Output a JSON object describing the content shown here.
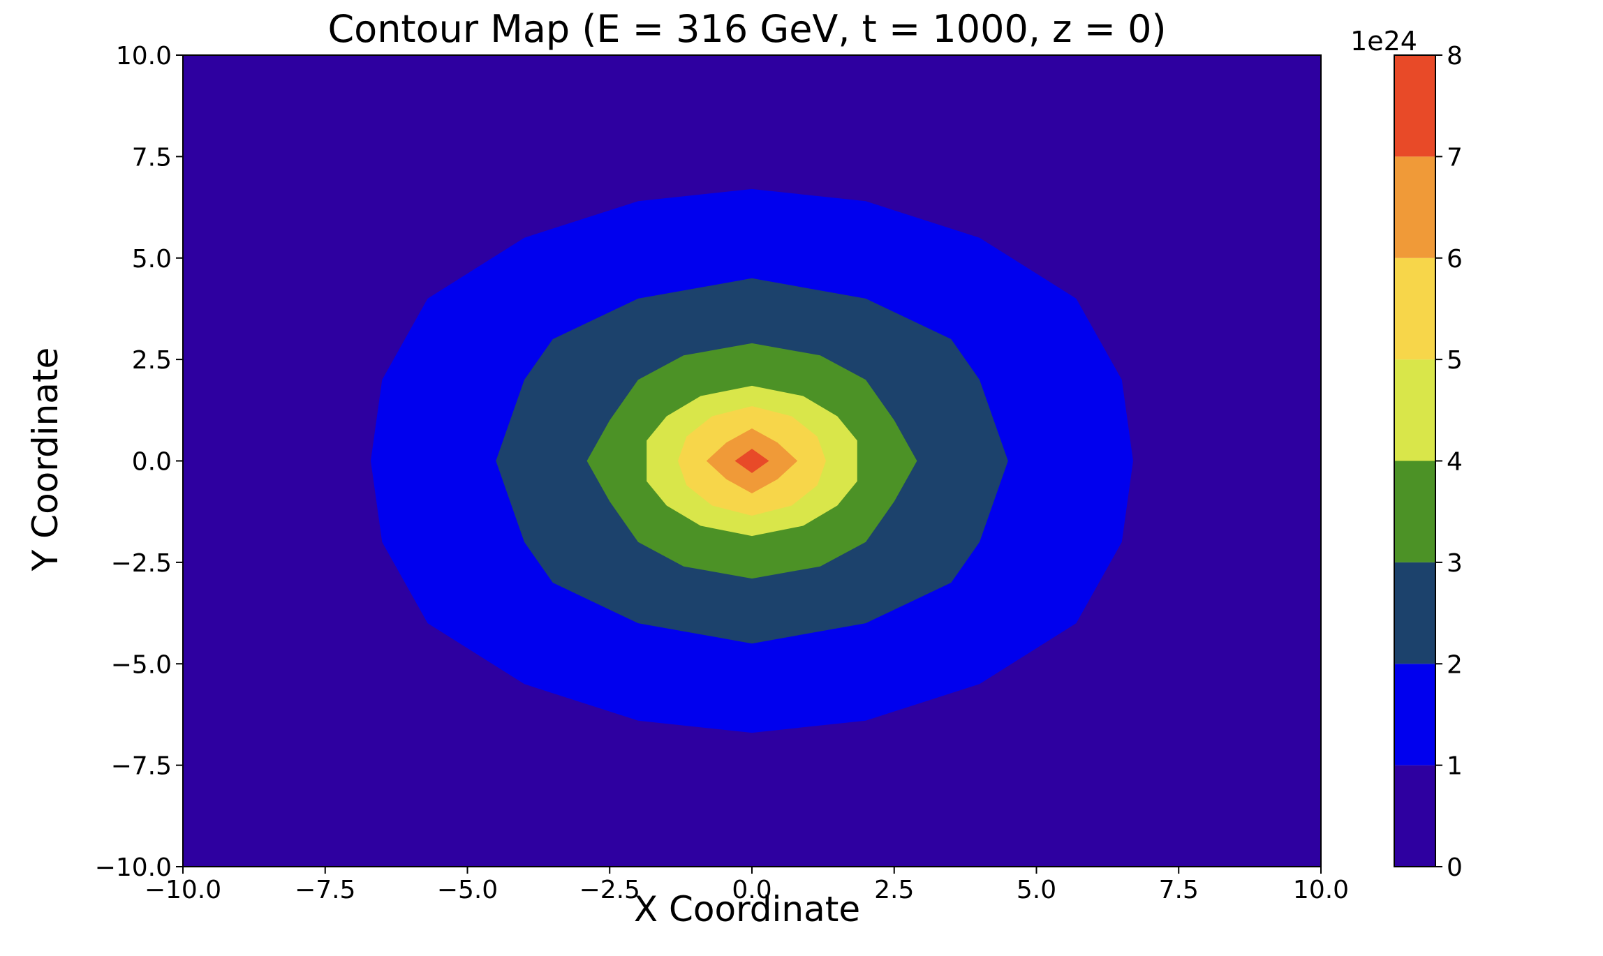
{
  "chart_data": {
    "type": "contour",
    "title": "Contour Map (E = 316 GeV, t = 1000, z = 0)",
    "xlabel": "X Coordinate",
    "ylabel": "Y Coordinate",
    "xlim": [
      -10,
      10
    ],
    "ylim": [
      -10,
      10
    ],
    "x_ticks": [
      "−10.0",
      "−7.5",
      "−5.0",
      "−2.5",
      "0.0",
      "2.5",
      "5.0",
      "7.5",
      "10.0"
    ],
    "y_ticks": [
      "−10.0",
      "−7.5",
      "−5.0",
      "−2.5",
      "0.0",
      "2.5",
      "5.0",
      "7.5",
      "10.0"
    ],
    "grid": false,
    "levels": [
      0,
      1,
      2,
      3,
      4,
      5,
      6,
      7,
      8
    ],
    "level_colors": [
      "#2e00a0",
      "#0000ee",
      "#1c426c",
      "#4c9226",
      "#d9e64a",
      "#f7d64a",
      "#f09a38",
      "#e84a28"
    ],
    "colorbar": {
      "scale_label": "1e24",
      "tick_labels": [
        "0",
        "1",
        "2",
        "3",
        "4",
        "5",
        "6",
        "7",
        "8"
      ]
    },
    "contours": [
      {
        "level": 1,
        "points": [
          [
            0,
            6.7
          ],
          [
            2,
            6.4
          ],
          [
            4,
            5.5
          ],
          [
            5.7,
            4
          ],
          [
            6.5,
            2
          ],
          [
            6.7,
            0
          ],
          [
            6.5,
            -2
          ],
          [
            5.7,
            -4
          ],
          [
            4,
            -5.5
          ],
          [
            2,
            -6.4
          ],
          [
            0,
            -6.7
          ],
          [
            -2,
            -6.4
          ],
          [
            -4,
            -5.5
          ],
          [
            -5.7,
            -4
          ],
          [
            -6.5,
            -2
          ],
          [
            -6.7,
            0
          ],
          [
            -6.5,
            2
          ],
          [
            -5.7,
            4
          ],
          [
            -4,
            5.5
          ],
          [
            -2,
            6.4
          ]
        ]
      },
      {
        "level": 2,
        "points": [
          [
            0,
            4.5
          ],
          [
            2,
            4
          ],
          [
            3.5,
            3
          ],
          [
            4,
            2
          ],
          [
            4.5,
            0
          ],
          [
            4,
            -2
          ],
          [
            3.5,
            -3
          ],
          [
            2,
            -4
          ],
          [
            0,
            -4.5
          ],
          [
            -2,
            -4
          ],
          [
            -3.5,
            -3
          ],
          [
            -4,
            -2
          ],
          [
            -4.5,
            0
          ],
          [
            -4,
            2
          ],
          [
            -3.5,
            3
          ],
          [
            -2,
            4
          ]
        ]
      },
      {
        "level": 3,
        "points": [
          [
            0,
            2.9
          ],
          [
            1.2,
            2.6
          ],
          [
            2,
            2
          ],
          [
            2.5,
            1
          ],
          [
            2.9,
            0
          ],
          [
            2.5,
            -1
          ],
          [
            2,
            -2
          ],
          [
            1.2,
            -2.6
          ],
          [
            0,
            -2.9
          ],
          [
            -1.2,
            -2.6
          ],
          [
            -2,
            -2
          ],
          [
            -2.5,
            -1
          ],
          [
            -2.9,
            0
          ],
          [
            -2.5,
            1
          ],
          [
            -2,
            2
          ],
          [
            -1.2,
            2.6
          ]
        ]
      },
      {
        "level": 4,
        "points": [
          [
            0,
            1.85
          ],
          [
            0.9,
            1.6
          ],
          [
            1.5,
            1.1
          ],
          [
            1.85,
            0.5
          ],
          [
            1.85,
            0
          ],
          [
            1.85,
            -0.5
          ],
          [
            1.5,
            -1.1
          ],
          [
            0.9,
            -1.6
          ],
          [
            0,
            -1.85
          ],
          [
            -0.9,
            -1.6
          ],
          [
            -1.5,
            -1.1
          ],
          [
            -1.85,
            -0.5
          ],
          [
            -1.85,
            0
          ],
          [
            -1.85,
            0.5
          ],
          [
            -1.5,
            1.1
          ],
          [
            -0.9,
            1.6
          ]
        ]
      },
      {
        "level": 5,
        "points": [
          [
            0,
            1.35
          ],
          [
            0.7,
            1.1
          ],
          [
            1.15,
            0.6
          ],
          [
            1.3,
            0
          ],
          [
            1.15,
            -0.6
          ],
          [
            0.7,
            -1.1
          ],
          [
            0,
            -1.35
          ],
          [
            -0.7,
            -1.1
          ],
          [
            -1.15,
            -0.6
          ],
          [
            -1.3,
            0
          ],
          [
            -1.15,
            0.6
          ],
          [
            -0.7,
            1.1
          ]
        ]
      },
      {
        "level": 6,
        "points": [
          [
            0,
            0.8
          ],
          [
            0.45,
            0.45
          ],
          [
            0.8,
            0
          ],
          [
            0.45,
            -0.45
          ],
          [
            0,
            -0.8
          ],
          [
            -0.45,
            -0.45
          ],
          [
            -0.8,
            0
          ],
          [
            -0.45,
            0.45
          ]
        ]
      },
      {
        "level": 7,
        "points": [
          [
            0,
            0.3
          ],
          [
            0.3,
            0
          ],
          [
            0,
            -0.3
          ],
          [
            -0.3,
            0
          ]
        ]
      }
    ]
  }
}
